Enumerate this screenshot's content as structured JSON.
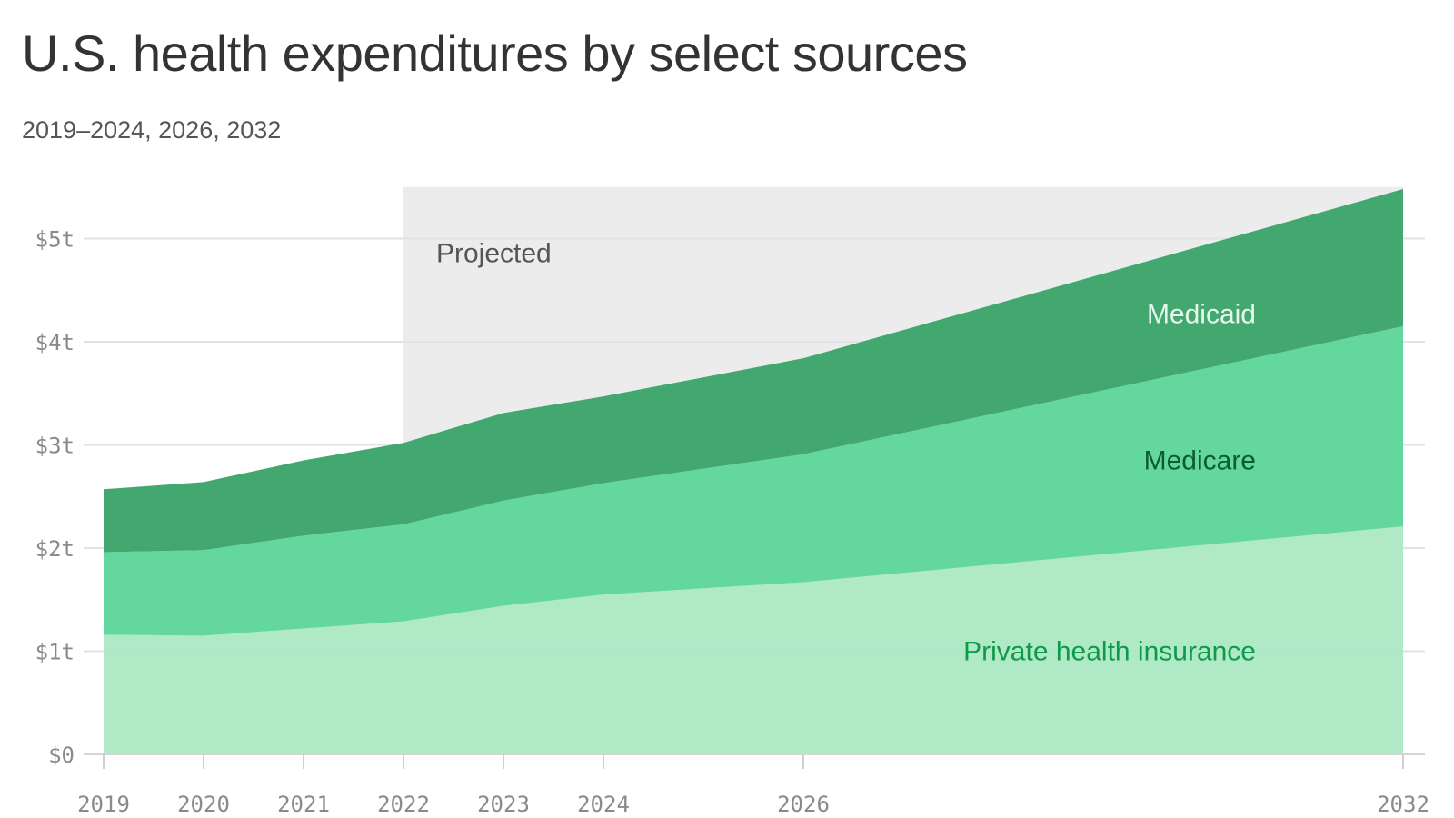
{
  "title": "U.S. health expenditures by select sources",
  "subtitle": "2019–2024, 2026, 2032",
  "chart_data": {
    "type": "area",
    "stacked": true,
    "title": "U.S. health expenditures by select sources",
    "subtitle": "2019–2024, 2026, 2032",
    "x": [
      2019,
      2020,
      2021,
      2022,
      2023,
      2024,
      2026,
      2032
    ],
    "x_tick_labels": [
      "2019",
      "2020",
      "2021",
      "2022",
      "2023",
      "2024",
      "2026",
      "2032"
    ],
    "y_tick_values": [
      0,
      1,
      2,
      3,
      4,
      5
    ],
    "y_tick_labels": [
      "$0",
      "$1t",
      "$2t",
      "$3t",
      "$4t",
      "$5t"
    ],
    "ylim": [
      0,
      5.5
    ],
    "xlabel": "",
    "ylabel": "",
    "grid": true,
    "projected_region": {
      "start": 2022,
      "end": 2032,
      "label": "Projected"
    },
    "series": [
      {
        "name": "Private health insurance",
        "label": "Private health insurance",
        "color": "#ace8c4",
        "label_color": "#0d9a4a",
        "values": [
          1.16,
          1.15,
          1.22,
          1.29,
          1.44,
          1.55,
          1.67,
          2.21
        ]
      },
      {
        "name": "Medicare",
        "label": "Medicare",
        "color": "#5fd69c",
        "label_color": "#0b5e2c",
        "values": [
          0.8,
          0.83,
          0.9,
          0.94,
          1.02,
          1.08,
          1.24,
          1.94
        ]
      },
      {
        "name": "Medicaid",
        "label": "Medicaid",
        "color": "#3da56b",
        "label_color": "#e6f7ec",
        "values": [
          0.61,
          0.66,
          0.73,
          0.79,
          0.85,
          0.84,
          0.93,
          1.33
        ]
      }
    ]
  },
  "colors": {
    "grid": "#e2e2e2",
    "projected_background": "#ececec",
    "tick_label": "#8a8a8a",
    "title": "#333333"
  }
}
